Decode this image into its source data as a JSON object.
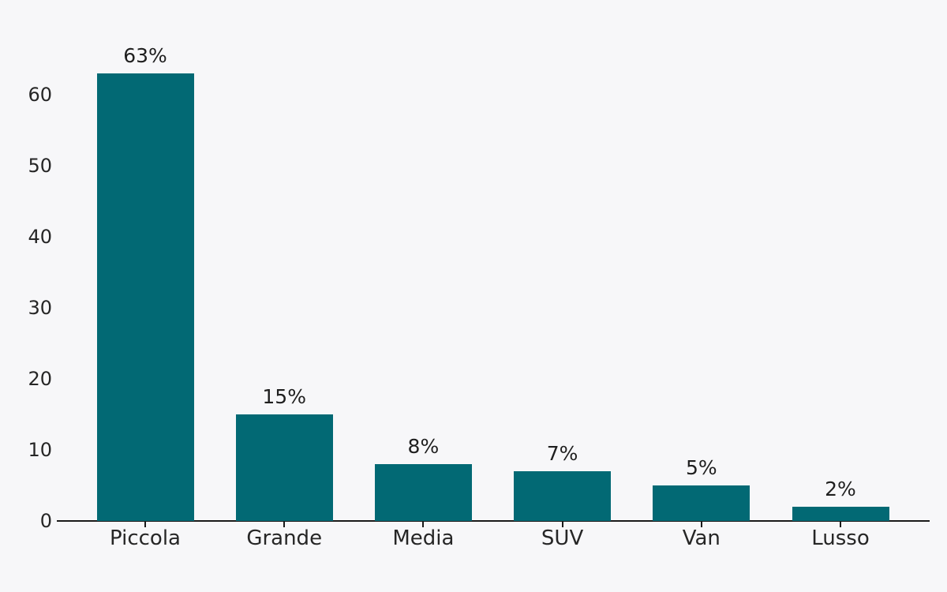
{
  "chart_data": {
    "type": "bar",
    "categories": [
      "Piccola",
      "Grande",
      "Media",
      "SUV",
      "Van",
      "Lusso"
    ],
    "values": [
      63,
      15,
      8,
      7,
      5,
      2
    ],
    "value_labels": [
      "63%",
      "15%",
      "8%",
      "7%",
      "5%",
      "2%"
    ],
    "title": "",
    "xlabel": "",
    "ylabel": "",
    "ylim": [
      0,
      63
    ],
    "yticks": [
      0,
      10,
      20,
      30,
      40,
      50,
      60
    ],
    "grid": "off",
    "legend": "none",
    "bar_color": "#026974",
    "background_color": "#f7f7f9",
    "axis_color": "#1a1a1a",
    "text_color": "#262626"
  },
  "layout_note": "single horizontal bottom axis, no left spine, value labels above bars"
}
